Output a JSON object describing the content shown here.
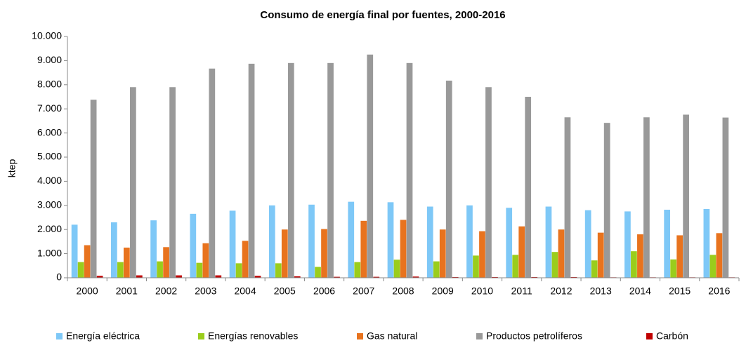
{
  "chart_data": {
    "type": "bar",
    "title": "Consumo de energía final por fuentes, 2000-2016",
    "y_label": "ktep",
    "categories": [
      "2000",
      "2001",
      "2002",
      "2003",
      "2004",
      "2005",
      "2006",
      "2007",
      "2008",
      "2009",
      "2010",
      "2011",
      "2012",
      "2013",
      "2014",
      "2015",
      "2016"
    ],
    "series": [
      {
        "name": "Energía eléctrica",
        "color": "#7ec8f7",
        "values": [
          2200,
          2300,
          2380,
          2650,
          2780,
          3000,
          3030,
          3150,
          3130,
          2950,
          3000,
          2900,
          2950,
          2800,
          2750,
          2820,
          2850
        ]
      },
      {
        "name": "Energías renovables",
        "color": "#9acd1c",
        "values": [
          650,
          650,
          680,
          620,
          600,
          600,
          450,
          650,
          750,
          680,
          920,
          950,
          1070,
          720,
          1100,
          760,
          950
        ]
      },
      {
        "name": "Gas natural",
        "color": "#e8731e",
        "values": [
          1350,
          1250,
          1270,
          1430,
          1530,
          2000,
          2020,
          2360,
          2400,
          2000,
          1930,
          2130,
          2000,
          1870,
          1800,
          1760,
          1850
        ]
      },
      {
        "name": "Productos petrolíferos",
        "color": "#999999",
        "values": [
          7380,
          7900,
          7900,
          8670,
          8870,
          8900,
          8900,
          9250,
          8900,
          8170,
          7900,
          7500,
          6650,
          6420,
          6650,
          6760,
          6640
        ]
      },
      {
        "name": "Carbón",
        "color": "#c00000",
        "values": [
          80,
          100,
          100,
          100,
          80,
          60,
          40,
          40,
          50,
          30,
          30,
          30,
          30,
          20,
          20,
          20,
          20
        ]
      }
    ],
    "ylim": [
      0,
      10000
    ],
    "yticks": [
      0,
      {
        "value": 1000,
        "label": "1.000"
      },
      {
        "value": 2000,
        "label": "2.000"
      },
      {
        "value": 3000,
        "label": "3.000"
      },
      {
        "value": 4000,
        "label": "4.000"
      },
      {
        "value": 5000,
        "label": "5.000"
      },
      {
        "value": 6000,
        "label": "6.000"
      },
      {
        "value": 7000,
        "label": "7.000"
      },
      {
        "value": 8000,
        "label": "8.000"
      },
      {
        "value": 9000,
        "label": "9.000"
      },
      {
        "value": 10000,
        "label": "10.000"
      }
    ],
    "grid": false,
    "legend": "bottom"
  }
}
